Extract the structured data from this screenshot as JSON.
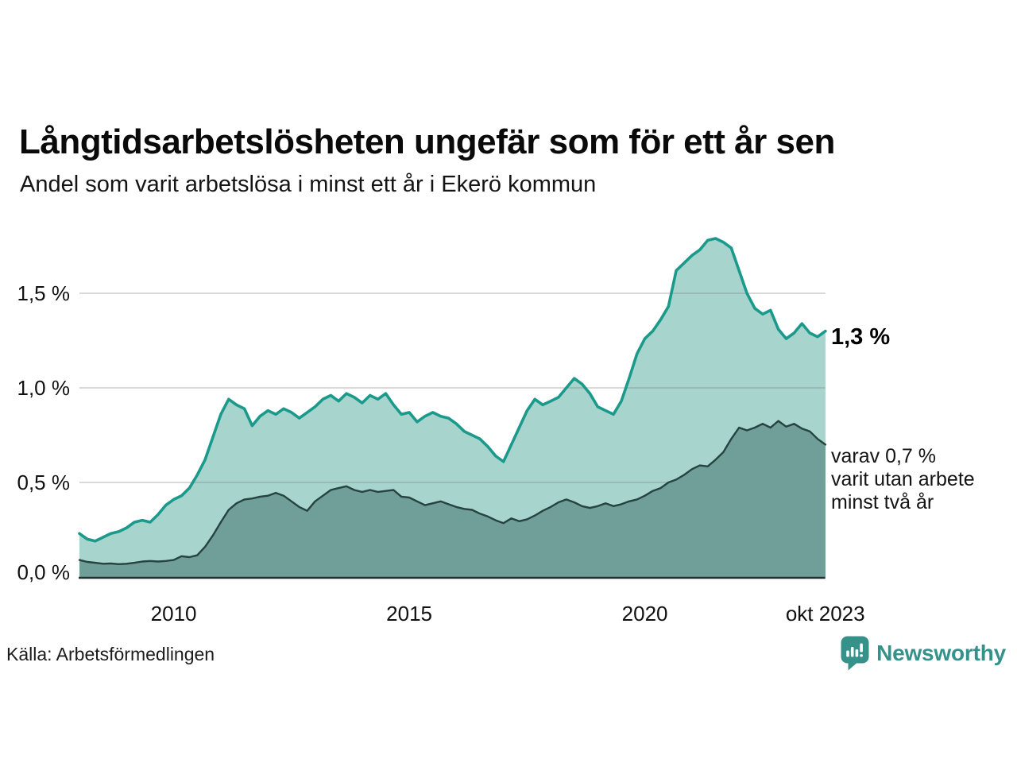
{
  "header": {
    "title": "Långtidsarbetslösheten ungefär som för ett år sen",
    "subtitle": "Andel som varit arbetslösa i minst ett år i Ekerö kommun"
  },
  "chart_data": {
    "type": "area",
    "title": "Långtidsarbetslösheten ungefär som för ett år sen",
    "subtitle": "Andel som varit arbetslösa i minst ett år i Ekerö kommun",
    "unit": "%",
    "x_start": 2008.0,
    "x_step_years": 0.16667,
    "x_end": 2023.83,
    "n_points": 96,
    "xlim": [
      2008.0,
      2023.83
    ],
    "ylim": [
      0,
      1.9
    ],
    "grid": "horizontal",
    "series": [
      {
        "name": "Andel arbetslösa minst ett år",
        "line_color": "#1b9a8c",
        "fill_color": "#a7d4cd",
        "values": [
          0.23,
          0.2,
          0.19,
          0.21,
          0.23,
          0.24,
          0.26,
          0.29,
          0.3,
          0.29,
          0.33,
          0.38,
          0.41,
          0.43,
          0.47,
          0.54,
          0.62,
          0.74,
          0.86,
          0.94,
          0.91,
          0.89,
          0.8,
          0.85,
          0.88,
          0.86,
          0.89,
          0.87,
          0.84,
          0.87,
          0.9,
          0.94,
          0.96,
          0.93,
          0.97,
          0.95,
          0.92,
          0.96,
          0.94,
          0.97,
          0.91,
          0.86,
          0.87,
          0.82,
          0.85,
          0.87,
          0.85,
          0.84,
          0.81,
          0.77,
          0.75,
          0.73,
          0.69,
          0.64,
          0.61,
          0.7,
          0.79,
          0.88,
          0.94,
          0.91,
          0.93,
          0.95,
          1.0,
          1.05,
          1.02,
          0.97,
          0.9,
          0.88,
          0.86,
          0.93,
          1.05,
          1.18,
          1.26,
          1.3,
          1.36,
          1.43,
          1.62,
          1.66,
          1.7,
          1.73,
          1.78,
          1.79,
          1.77,
          1.74,
          1.62,
          1.5,
          1.42,
          1.39,
          1.41,
          1.31,
          1.26,
          1.29,
          1.34,
          1.29,
          1.27,
          1.3
        ]
      },
      {
        "name": "varav utan arbete minst två år",
        "line_color": "#26433f",
        "fill_color": "#6f9f98",
        "values": [
          0.09,
          0.08,
          0.075,
          0.07,
          0.072,
          0.068,
          0.07,
          0.075,
          0.082,
          0.085,
          0.082,
          0.085,
          0.09,
          0.11,
          0.105,
          0.115,
          0.16,
          0.22,
          0.29,
          0.355,
          0.39,
          0.41,
          0.415,
          0.425,
          0.43,
          0.445,
          0.43,
          0.4,
          0.37,
          0.35,
          0.4,
          0.43,
          0.46,
          0.47,
          0.48,
          0.46,
          0.45,
          0.46,
          0.45,
          0.455,
          0.46,
          0.425,
          0.42,
          0.4,
          0.38,
          0.39,
          0.4,
          0.385,
          0.37,
          0.36,
          0.355,
          0.335,
          0.32,
          0.3,
          0.285,
          0.31,
          0.295,
          0.305,
          0.325,
          0.35,
          0.37,
          0.395,
          0.41,
          0.395,
          0.375,
          0.365,
          0.375,
          0.39,
          0.375,
          0.385,
          0.4,
          0.41,
          0.43,
          0.455,
          0.47,
          0.5,
          0.515,
          0.54,
          0.57,
          0.59,
          0.585,
          0.62,
          0.66,
          0.73,
          0.79,
          0.775,
          0.79,
          0.81,
          0.79,
          0.825,
          0.795,
          0.81,
          0.785,
          0.77,
          0.73,
          0.7
        ]
      }
    ],
    "x_ticks": [
      {
        "label": "2010",
        "x": 2010
      },
      {
        "label": "2015",
        "x": 2015
      },
      {
        "label": "2020",
        "x": 2020
      },
      {
        "label": "okt 2023",
        "x": 2023.83
      }
    ],
    "y_ticks": [
      {
        "label": "0,0 %",
        "v": 0
      },
      {
        "label": "0,5 %",
        "v": 0.5
      },
      {
        "label": "1,0 %",
        "v": 1.0
      },
      {
        "label": "1,5 %",
        "v": 1.5
      }
    ],
    "legend_position": "none"
  },
  "annotations": {
    "latest_value": "1,3 %",
    "secondary_lines": [
      "varav 0,7 %",
      "varit utan arbete",
      "minst två år"
    ]
  },
  "footer": {
    "source": "Källa: Arbetsförmedlingen",
    "brand_name": "Newsworthy"
  },
  "colors": {
    "accent_teal": "#1b9a8c",
    "light_fill": "#a7d4cd",
    "dark_fill": "#6f9f98",
    "dark_line": "#26433f",
    "brand_teal": "#35918a",
    "gridline": "#e4e4e4",
    "axis": "#223330",
    "text": "#111111"
  }
}
